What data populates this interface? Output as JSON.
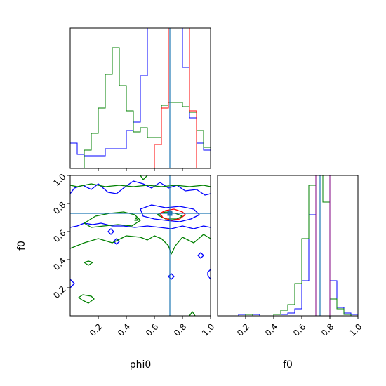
{
  "chart_data": [
    {
      "type": "histogram",
      "panel": "phi0-marginal",
      "xlim": [
        0,
        1
      ],
      "ticks": [
        0.2,
        0.4,
        0.6,
        0.8
      ],
      "tick_labels_visible": false,
      "bin_edges": [
        0.0,
        0.05,
        0.1,
        0.15,
        0.2,
        0.25,
        0.3,
        0.35,
        0.4,
        0.45,
        0.5,
        0.55,
        0.6,
        0.65,
        0.7,
        0.75,
        0.8,
        0.85,
        0.9,
        0.95,
        1.0
      ],
      "truth": 0.71,
      "series": [
        {
          "color": "#0000ff",
          "counts": [
            0.18,
            0.1,
            0.09,
            0.09,
            0.09,
            0.14,
            0.14,
            0.14,
            0.27,
            0.33,
            0.66,
            1.0,
            1.0,
            1.0,
            1.0,
            1.0,
            0.72,
            0.36,
            0.18,
            0.13
          ]
        },
        {
          "color": "#008000",
          "counts": [
            0.0,
            0.0,
            0.13,
            0.25,
            0.43,
            0.67,
            0.86,
            0.59,
            0.41,
            0.26,
            0.29,
            0.22,
            0.22,
            0.45,
            0.47,
            0.47,
            0.44,
            0.4,
            0.27,
            0.15
          ]
        },
        {
          "color": "#ff0000",
          "counts": [
            0.0,
            0.0,
            0.0,
            0.0,
            0.0,
            0.0,
            0.0,
            0.0,
            0.0,
            0.0,
            0.0,
            0.0,
            0.17,
            0.43,
            1.0,
            1.0,
            1.0,
            0.41,
            0.0,
            0.0
          ]
        }
      ]
    },
    {
      "type": "contour",
      "panel": "phi0-vs-f0",
      "xlabel": "phi0",
      "ylabel": "f0",
      "xlim": [
        0,
        1
      ],
      "ylim": [
        0,
        1
      ],
      "xticks": [
        "0.2",
        "0.4",
        "0.6",
        "0.8",
        "1.0"
      ],
      "yticks": [
        "0.2",
        "0.4",
        "0.6",
        "0.8",
        "1.0"
      ],
      "truth": {
        "x": 0.71,
        "y": 0.73
      },
      "series": [
        {
          "color": "#0000ff",
          "contours": [
            {
              "closed": false,
              "points": [
                [
                  0.0,
                  0.87
                ],
                [
                  0.03,
                  0.91
                ],
                [
                  0.09,
                  0.93
                ],
                [
                  0.15,
                  0.9
                ],
                [
                  0.2,
                  0.94
                ],
                [
                  0.27,
                  0.88
                ],
                [
                  0.33,
                  0.87
                ],
                [
                  0.38,
                  0.91
                ],
                [
                  0.45,
                  0.96
                ],
                [
                  0.52,
                  0.94
                ],
                [
                  0.58,
                  0.91
                ],
                [
                  0.64,
                  0.95
                ],
                [
                  0.7,
                  0.91
                ],
                [
                  0.76,
                  0.93
                ],
                [
                  0.82,
                  0.89
                ],
                [
                  0.9,
                  0.9
                ],
                [
                  0.96,
                  0.86
                ],
                [
                  1.0,
                  0.87
                ]
              ]
            },
            {
              "closed": true,
              "points": [
                [
                  0.5,
                  0.76
                ],
                [
                  0.58,
                  0.79
                ],
                [
                  0.68,
                  0.77
                ],
                [
                  0.78,
                  0.78
                ],
                [
                  0.88,
                  0.76
                ],
                [
                  0.92,
                  0.72
                ],
                [
                  0.86,
                  0.69
                ],
                [
                  0.78,
                  0.67
                ],
                [
                  0.68,
                  0.68
                ],
                [
                  0.6,
                  0.69
                ],
                [
                  0.52,
                  0.71
                ]
              ]
            },
            {
              "closed": false,
              "points": [
                [
                  0.0,
                  0.63
                ],
                [
                  0.05,
                  0.64
                ],
                [
                  0.1,
                  0.66
                ],
                [
                  0.16,
                  0.65
                ],
                [
                  0.22,
                  0.66
                ],
                [
                  0.3,
                  0.64
                ],
                [
                  0.38,
                  0.64
                ],
                [
                  0.46,
                  0.63
                ],
                [
                  0.55,
                  0.64
                ],
                [
                  0.64,
                  0.63
                ],
                [
                  0.72,
                  0.62
                ],
                [
                  0.8,
                  0.64
                ],
                [
                  0.88,
                  0.62
                ],
                [
                  0.95,
                  0.64
                ],
                [
                  1.0,
                  0.63
                ]
              ]
            },
            {
              "closed": true,
              "points": [
                [
                  0.27,
                  0.6
                ],
                [
                  0.29,
                  0.62
                ],
                [
                  0.31,
                  0.6
                ],
                [
                  0.29,
                  0.58
                ]
              ]
            },
            {
              "closed": true,
              "points": [
                [
                  0.31,
                  0.53
                ],
                [
                  0.33,
                  0.55
                ],
                [
                  0.35,
                  0.53
                ],
                [
                  0.33,
                  0.51
                ]
              ]
            },
            {
              "closed": true,
              "points": [
                [
                  0.7,
                  0.28
                ],
                [
                  0.72,
                  0.3
                ],
                [
                  0.74,
                  0.28
                ],
                [
                  0.72,
                  0.26
                ]
              ]
            },
            {
              "closed": true,
              "points": [
                [
                  0.91,
                  0.43
                ],
                [
                  0.93,
                  0.45
                ],
                [
                  0.95,
                  0.43
                ],
                [
                  0.93,
                  0.41
                ]
              ]
            },
            {
              "closed": false,
              "points": [
                [
                  0.0,
                  0.26
                ],
                [
                  0.03,
                  0.23
                ],
                [
                  0.0,
                  0.2
                ]
              ]
            },
            {
              "closed": false,
              "points": [
                [
                  1.0,
                  0.33
                ],
                [
                  0.98,
                  0.31
                ],
                [
                  0.98,
                  0.29
                ],
                [
                  1.0,
                  0.26
                ]
              ]
            }
          ]
        },
        {
          "color": "#008000",
          "contours": [
            {
              "closed": false,
              "points": [
                [
                  0.0,
                  0.93
                ],
                [
                  0.05,
                  0.92
                ],
                [
                  0.15,
                  0.94
                ],
                [
                  0.25,
                  0.92
                ],
                [
                  0.35,
                  0.93
                ],
                [
                  0.45,
                  0.92
                ],
                [
                  0.55,
                  0.93
                ],
                [
                  0.65,
                  0.92
                ],
                [
                  0.75,
                  0.93
                ],
                [
                  0.85,
                  0.92
                ],
                [
                  0.95,
                  0.93
                ],
                [
                  1.0,
                  0.92
                ]
              ]
            },
            {
              "closed": false,
              "points": [
                [
                  0.0,
                  0.48
                ],
                [
                  0.1,
                  0.52
                ],
                [
                  0.2,
                  0.55
                ],
                [
                  0.3,
                  0.52
                ],
                [
                  0.4,
                  0.57
                ],
                [
                  0.5,
                  0.56
                ],
                [
                  0.55,
                  0.54
                ],
                [
                  0.6,
                  0.57
                ],
                [
                  0.65,
                  0.55
                ],
                [
                  0.7,
                  0.5
                ],
                [
                  0.72,
                  0.44
                ],
                [
                  0.75,
                  0.5
                ],
                [
                  0.8,
                  0.56
                ],
                [
                  0.88,
                  0.52
                ],
                [
                  0.95,
                  0.58
                ],
                [
                  1.0,
                  0.55
                ]
              ]
            },
            {
              "closed": true,
              "points": [
                [
                  0.1,
                  0.66
                ],
                [
                  0.18,
                  0.71
                ],
                [
                  0.28,
                  0.73
                ],
                [
                  0.38,
                  0.74
                ],
                [
                  0.46,
                  0.72
                ],
                [
                  0.5,
                  0.68
                ],
                [
                  0.44,
                  0.64
                ],
                [
                  0.34,
                  0.65
                ],
                [
                  0.24,
                  0.64
                ],
                [
                  0.15,
                  0.63
                ]
              ]
            },
            {
              "closed": true,
              "points": [
                [
                  0.62,
                  0.72
                ],
                [
                  0.68,
                  0.74
                ],
                [
                  0.75,
                  0.73
                ],
                [
                  0.8,
                  0.71
                ],
                [
                  0.76,
                  0.69
                ],
                [
                  0.68,
                  0.69
                ]
              ]
            },
            {
              "closed": true,
              "points": [
                [
                  0.46,
                  0.68
                ],
                [
                  0.47,
                  0.7
                ],
                [
                  0.48,
                  0.68
                ]
              ]
            },
            {
              "closed": true,
              "points": [
                [
                  0.1,
                  0.38
                ],
                [
                  0.13,
                  0.39
                ],
                [
                  0.16,
                  0.38
                ],
                [
                  0.13,
                  0.36
                ]
              ]
            },
            {
              "closed": true,
              "points": [
                [
                  0.06,
                  0.13
                ],
                [
                  0.09,
                  0.15
                ],
                [
                  0.15,
                  0.14
                ],
                [
                  0.17,
                  0.12
                ],
                [
                  0.13,
                  0.09
                ],
                [
                  0.09,
                  0.11
                ]
              ]
            },
            {
              "closed": false,
              "points": [
                [
                  0.85,
                  0.0
                ],
                [
                  0.87,
                  0.03
                ],
                [
                  0.89,
                  0.0
                ]
              ]
            },
            {
              "closed": false,
              "points": [
                [
                  0.5,
                  1.0
                ],
                [
                  0.52,
                  0.97
                ],
                [
                  0.55,
                  1.0
                ]
              ]
            }
          ]
        },
        {
          "color": "#ff0000",
          "contours": [
            {
              "closed": true,
              "points": [
                [
                  0.64,
                  0.73
                ],
                [
                  0.68,
                  0.75
                ],
                [
                  0.74,
                  0.76
                ],
                [
                  0.8,
                  0.74
                ],
                [
                  0.82,
                  0.72
                ],
                [
                  0.78,
                  0.69
                ],
                [
                  0.72,
                  0.68
                ],
                [
                  0.66,
                  0.7
                ]
              ]
            }
          ]
        }
      ]
    },
    {
      "type": "histogram",
      "panel": "f0-marginal",
      "xlabel": "f0",
      "xlim": [
        0,
        1
      ],
      "xticks": [
        "0.2",
        "0.4",
        "0.6",
        "0.8",
        "1.0"
      ],
      "bin_edges": [
        0.0,
        0.05,
        0.1,
        0.15,
        0.2,
        0.25,
        0.3,
        0.35,
        0.4,
        0.45,
        0.5,
        0.55,
        0.6,
        0.65,
        0.7,
        0.75,
        0.8,
        0.85,
        0.9,
        0.95,
        1.0
      ],
      "truth": 0.73,
      "series": [
        {
          "color": "#0000ff",
          "counts": [
            0.0,
            0.0,
            0.0,
            0.01,
            0.0,
            0.01,
            0.0,
            0.0,
            0.01,
            0.01,
            0.02,
            0.05,
            0.25,
            0.72,
            1.0,
            1.0,
            0.25,
            0.06,
            0.02,
            0.01
          ]
        },
        {
          "color": "#008000",
          "counts": [
            0.0,
            0.0,
            0.0,
            0.0,
            0.01,
            0.0,
            0.0,
            0.0,
            0.01,
            0.04,
            0.08,
            0.23,
            0.55,
            0.93,
            1.0,
            0.81,
            0.12,
            0.05,
            0.01,
            0.0
          ]
        },
        {
          "color": "#ff0000",
          "counts": [
            0.0,
            0.0,
            0.0,
            0.0,
            0.0,
            0.0,
            0.0,
            0.0,
            0.0,
            0.0,
            0.0,
            0.0,
            0.0,
            0.0,
            1.0,
            1.0,
            0.0,
            0.0,
            0.0,
            0.0
          ]
        },
        {
          "color": "#800080",
          "counts": [
            0.0,
            0.0,
            0.0,
            0.0,
            0.0,
            0.0,
            0.0,
            0.0,
            0.0,
            0.0,
            0.0,
            0.0,
            0.0,
            0.0,
            1.0,
            1.0,
            0.0,
            0.0,
            0.0,
            0.0
          ]
        }
      ]
    }
  ],
  "colors": {
    "truth_line": "#1f77b4",
    "axes": "#000000"
  }
}
